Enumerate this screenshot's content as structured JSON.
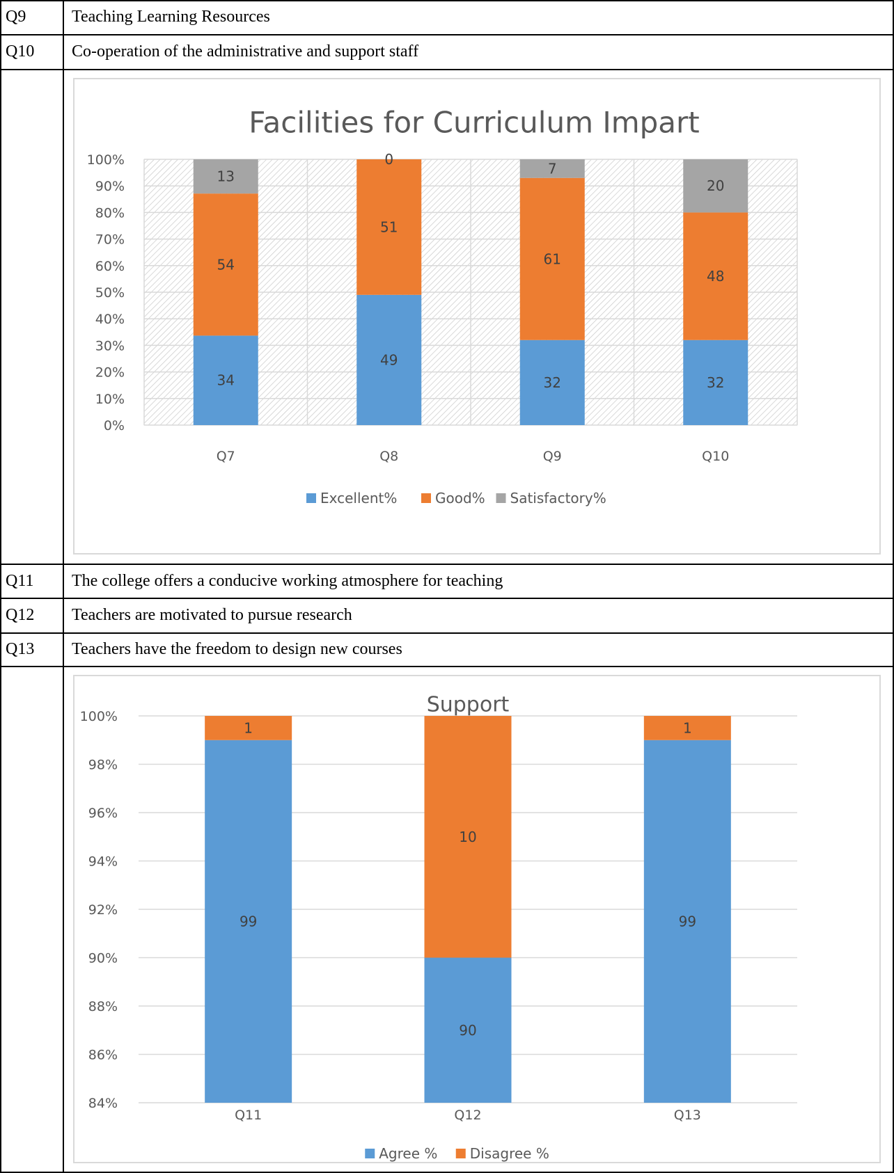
{
  "rows": [
    {
      "q": "Q9",
      "text": "Teaching Learning Resources"
    },
    {
      "q": "Q10",
      "text": "Co-operation of the administrative and support staff"
    },
    {
      "q": "Q11",
      "text": "The college offers a conducive working atmosphere for teaching"
    },
    {
      "q": "Q12",
      "text": "Teachers are motivated to pursue research"
    },
    {
      "q": "Q13",
      "text": "Teachers have the freedom to design new courses"
    }
  ],
  "chart_data": [
    {
      "type": "bar",
      "stacked": "percent",
      "title": "Facilities for Curriculum Impart",
      "categories": [
        "Q7",
        "Q8",
        "Q9",
        "Q10"
      ],
      "series": [
        {
          "name": "Excellent%",
          "values": [
            34,
            49,
            32,
            32
          ],
          "color": "#5b9bd5"
        },
        {
          "name": "Good%",
          "values": [
            54,
            51,
            61,
            48
          ],
          "color": "#ed7d31"
        },
        {
          "name": "Satisfactory%",
          "values": [
            13,
            0,
            7,
            20
          ],
          "color": "#a5a5a5"
        }
      ],
      "yticks": [
        "0%",
        "10%",
        "20%",
        "30%",
        "40%",
        "50%",
        "60%",
        "70%",
        "80%",
        "90%",
        "100%"
      ],
      "ylim": [
        0,
        100
      ],
      "legend": "bottom",
      "plot_background": "diagonal hatch"
    },
    {
      "type": "bar",
      "stacked": "percent",
      "title": "Support",
      "categories": [
        "Q11",
        "Q12",
        "Q13"
      ],
      "series": [
        {
          "name": "Agree %",
          "values": [
            99,
            90,
            99
          ],
          "color": "#5b9bd5"
        },
        {
          "name": "Disagree %",
          "values": [
            1,
            10,
            1
          ],
          "color": "#ed7d31"
        }
      ],
      "yticks": [
        "84%",
        "86%",
        "88%",
        "90%",
        "92%",
        "94%",
        "96%",
        "98%",
        "100%"
      ],
      "ylim": [
        84,
        100
      ],
      "legend": "bottom",
      "grid": true
    }
  ]
}
